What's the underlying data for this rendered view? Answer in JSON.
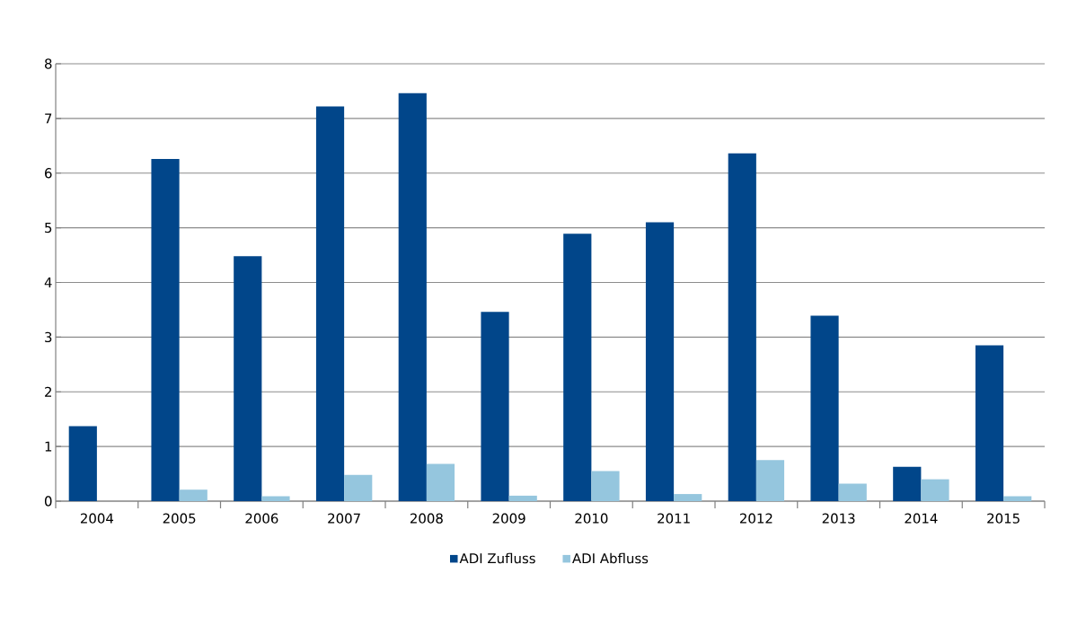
{
  "chart_data": {
    "type": "bar",
    "categories": [
      "2004",
      "2005",
      "2006",
      "2007",
      "2008",
      "2009",
      "2010",
      "2011",
      "2012",
      "2013",
      "2014",
      "2015"
    ],
    "series": [
      {
        "name": "ADI Zufluss",
        "color": "#01468a",
        "values": [
          1.37,
          6.26,
          4.48,
          7.22,
          7.46,
          3.46,
          4.89,
          5.1,
          6.36,
          3.39,
          0.63,
          2.85
        ]
      },
      {
        "name": "ADI Abfluss",
        "color": "#95c6de",
        "values": [
          0,
          0.21,
          0.09,
          0.48,
          0.68,
          0.1,
          0.55,
          0.13,
          0.75,
          0.32,
          0.4,
          0.09
        ]
      }
    ],
    "ylim": [
      0,
      8
    ],
    "yticks": [
      0,
      1,
      2,
      3,
      4,
      5,
      6,
      7,
      8
    ],
    "grid": "y",
    "legend": "bottom"
  }
}
